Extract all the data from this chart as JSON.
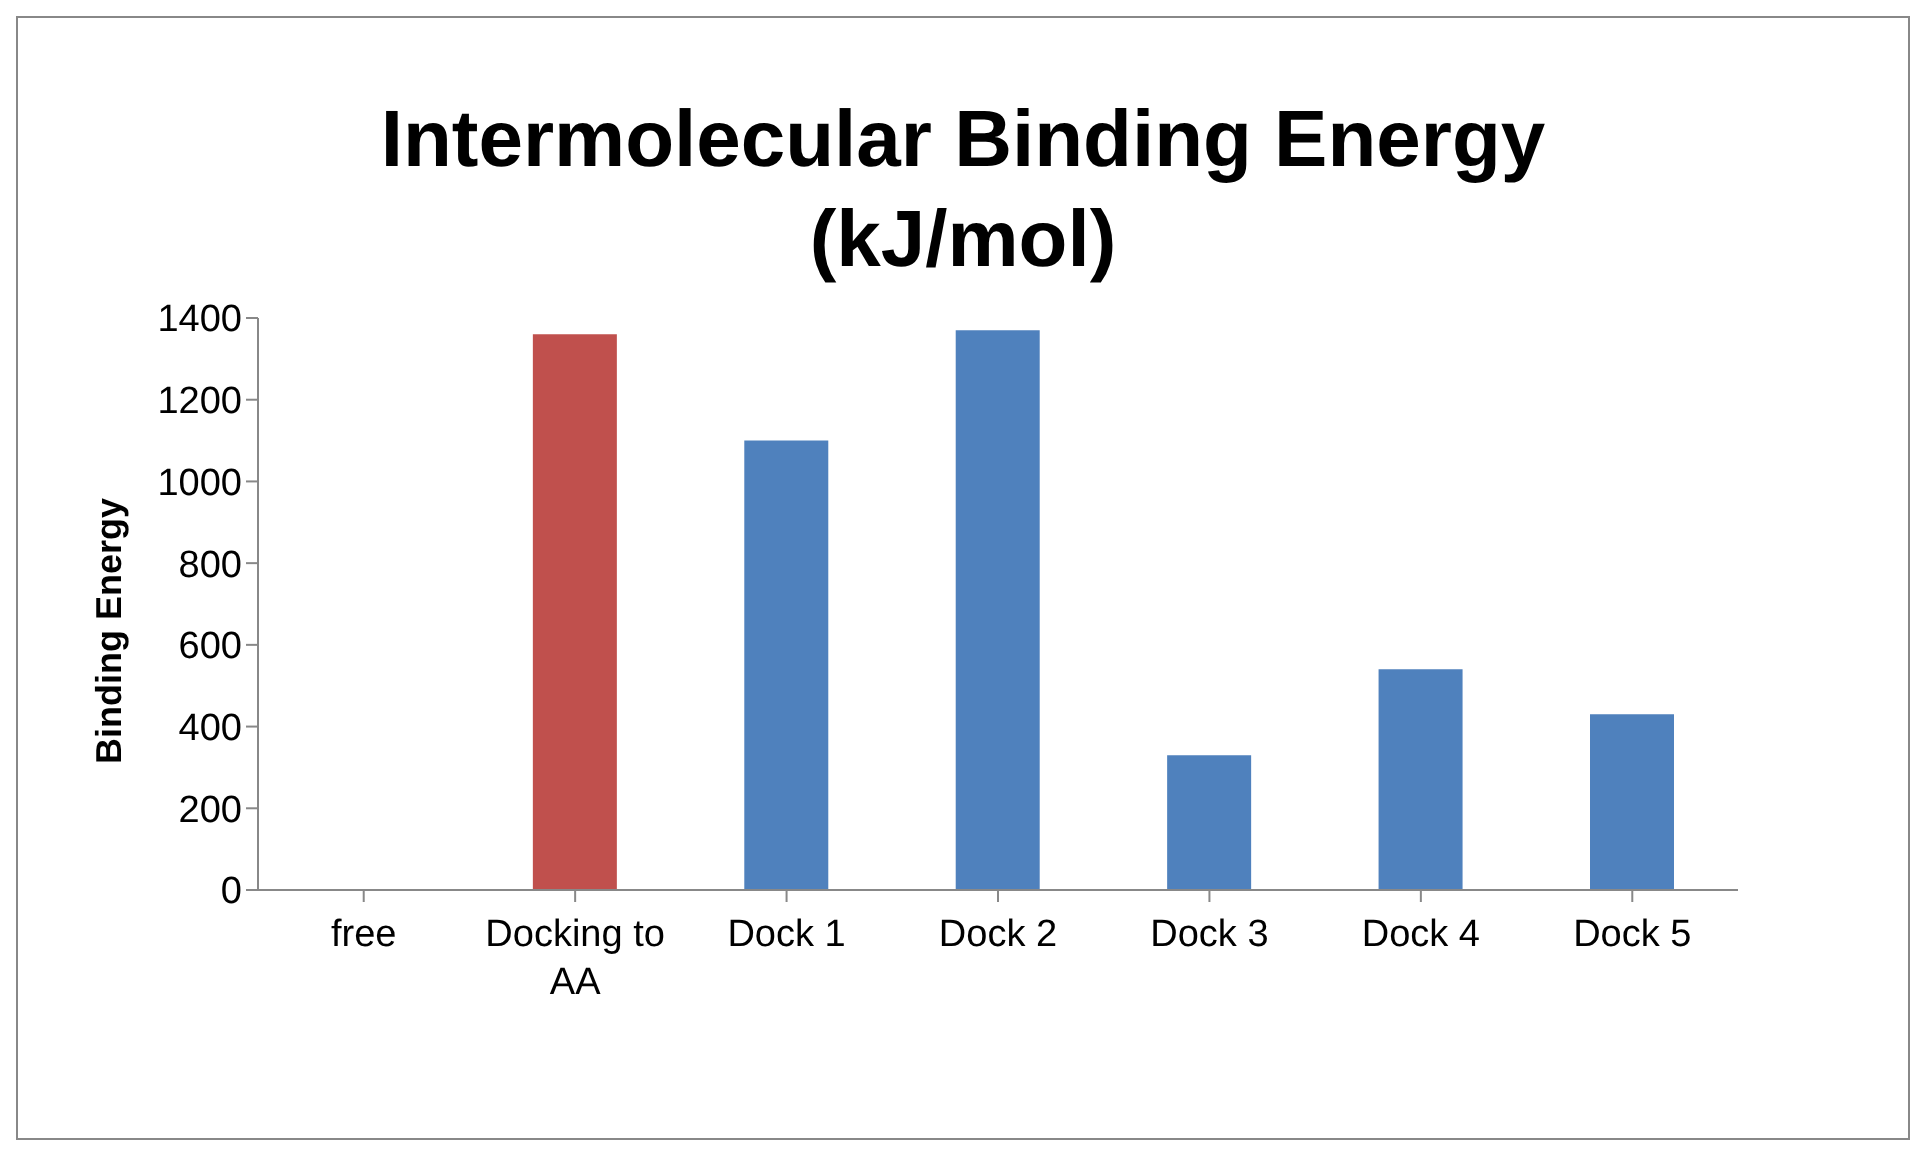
{
  "chart_data": {
    "type": "bar",
    "title": "Intermolecular Binding Energy (kJ/mol)",
    "ylabel": "Binding Energy",
    "categories": [
      "free",
      "Docking to AA",
      "Dock 1",
      "Dock 2",
      "Dock 3",
      "Dock 4",
      "Dock 5"
    ],
    "values": [
      0,
      1360,
      1100,
      1370,
      330,
      540,
      430
    ],
    "colors": [
      "#4f81bd",
      "#c0504d",
      "#4f81bd",
      "#4f81bd",
      "#4f81bd",
      "#4f81bd",
      "#4f81bd"
    ],
    "ylim": [
      0,
      1400
    ],
    "yticks": [
      0,
      200,
      400,
      600,
      800,
      1000,
      1200,
      1400
    ],
    "grid": false,
    "legend": false
  }
}
